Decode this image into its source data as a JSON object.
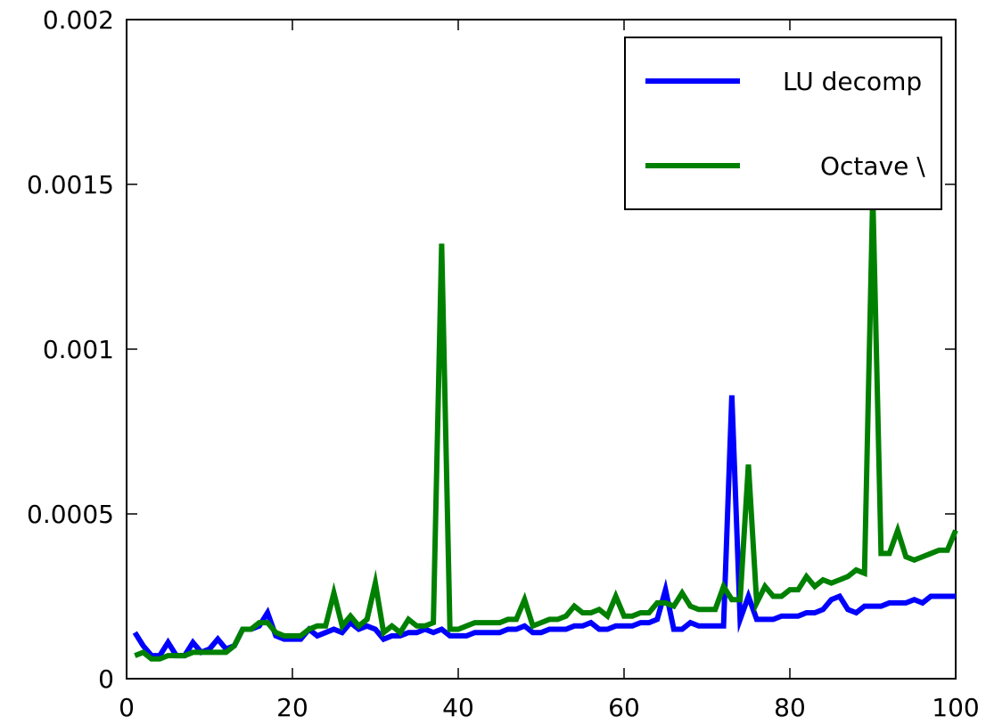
{
  "chart_data": {
    "type": "line",
    "title": "",
    "xlabel": "",
    "ylabel": "",
    "xlim": [
      0,
      100
    ],
    "ylim": [
      0,
      0.002
    ],
    "xticks": [
      0,
      20,
      40,
      60,
      80,
      100
    ],
    "xtick_labels": [
      "0",
      "20",
      "40",
      "60",
      "80",
      "100"
    ],
    "yticks": [
      0,
      0.0005,
      0.001,
      0.0015,
      0.002
    ],
    "ytick_labels": [
      "0",
      "0.0005",
      "0.001",
      "0.0015",
      "0.002"
    ],
    "grid": false,
    "legend_position": "top-right",
    "x": [
      1,
      2,
      3,
      4,
      5,
      6,
      7,
      8,
      9,
      10,
      11,
      12,
      13,
      14,
      15,
      16,
      17,
      18,
      19,
      20,
      21,
      22,
      23,
      24,
      25,
      26,
      27,
      28,
      29,
      30,
      31,
      32,
      33,
      34,
      35,
      36,
      37,
      38,
      39,
      40,
      41,
      42,
      43,
      44,
      45,
      46,
      47,
      48,
      49,
      50,
      51,
      52,
      53,
      54,
      55,
      56,
      57,
      58,
      59,
      60,
      61,
      62,
      63,
      64,
      65,
      66,
      67,
      68,
      69,
      70,
      71,
      72,
      73,
      74,
      75,
      76,
      77,
      78,
      79,
      80,
      81,
      82,
      83,
      84,
      85,
      86,
      87,
      88,
      89,
      90,
      91,
      92,
      93,
      94,
      95,
      96,
      97,
      98,
      99,
      100
    ],
    "series": [
      {
        "name": "LU decomp",
        "color": "#0000ff",
        "values": [
          0.00014,
          0.0001,
          7e-05,
          7e-05,
          0.00011,
          7e-05,
          7e-05,
          0.00011,
          8e-05,
          9e-05,
          0.00012,
          9e-05,
          0.0001,
          0.00015,
          0.00015,
          0.00016,
          0.0002,
          0.00013,
          0.00012,
          0.00012,
          0.00012,
          0.00015,
          0.00013,
          0.00014,
          0.00015,
          0.00014,
          0.00017,
          0.00015,
          0.00016,
          0.00015,
          0.00012,
          0.00013,
          0.00013,
          0.00014,
          0.00014,
          0.00015,
          0.00014,
          0.00015,
          0.00013,
          0.00013,
          0.00013,
          0.00014,
          0.00014,
          0.00014,
          0.00014,
          0.00015,
          0.00015,
          0.00016,
          0.00014,
          0.00014,
          0.00015,
          0.00015,
          0.00015,
          0.00016,
          0.00016,
          0.00017,
          0.00015,
          0.00015,
          0.00016,
          0.00016,
          0.00016,
          0.00017,
          0.00017,
          0.00018,
          0.00027,
          0.00015,
          0.00015,
          0.00017,
          0.00016,
          0.00016,
          0.00016,
          0.00016,
          0.00086,
          0.00018,
          0.00025,
          0.00018,
          0.00018,
          0.00018,
          0.00019,
          0.00019,
          0.00019,
          0.0002,
          0.0002,
          0.00021,
          0.00024,
          0.00025,
          0.00021,
          0.0002,
          0.00022,
          0.00022,
          0.00022,
          0.00023,
          0.00023,
          0.00023,
          0.00024,
          0.00023,
          0.00025,
          0.00025,
          0.00025,
          0.00025
        ]
      },
      {
        "name": "Octave \\",
        "color": "#008000",
        "values": [
          7e-05,
          8e-05,
          6e-05,
          6e-05,
          7e-05,
          7e-05,
          7e-05,
          8e-05,
          8e-05,
          8e-05,
          8e-05,
          8e-05,
          0.0001,
          0.00015,
          0.00015,
          0.00017,
          0.00017,
          0.00014,
          0.00013,
          0.00013,
          0.00013,
          0.00015,
          0.00016,
          0.00016,
          0.00026,
          0.00016,
          0.00019,
          0.00016,
          0.00018,
          0.00029,
          0.00014,
          0.00016,
          0.00014,
          0.00018,
          0.00016,
          0.00016,
          0.00017,
          0.00132,
          0.00015,
          0.00015,
          0.00016,
          0.00017,
          0.00017,
          0.00017,
          0.00017,
          0.00018,
          0.00018,
          0.00024,
          0.00016,
          0.00017,
          0.00018,
          0.00018,
          0.00019,
          0.00022,
          0.0002,
          0.0002,
          0.00021,
          0.00019,
          0.00025,
          0.00019,
          0.00019,
          0.0002,
          0.0002,
          0.00023,
          0.00023,
          0.00022,
          0.00026,
          0.00022,
          0.00021,
          0.00021,
          0.00021,
          0.00028,
          0.00024,
          0.00024,
          0.00065,
          0.00023,
          0.00028,
          0.00025,
          0.00025,
          0.00027,
          0.00027,
          0.00031,
          0.00028,
          0.0003,
          0.00029,
          0.0003,
          0.00031,
          0.00033,
          0.00032,
          0.00147,
          0.00038,
          0.00038,
          0.00045,
          0.00037,
          0.00036,
          0.00037,
          0.00038,
          0.00039,
          0.00039,
          0.00045
        ]
      }
    ]
  }
}
